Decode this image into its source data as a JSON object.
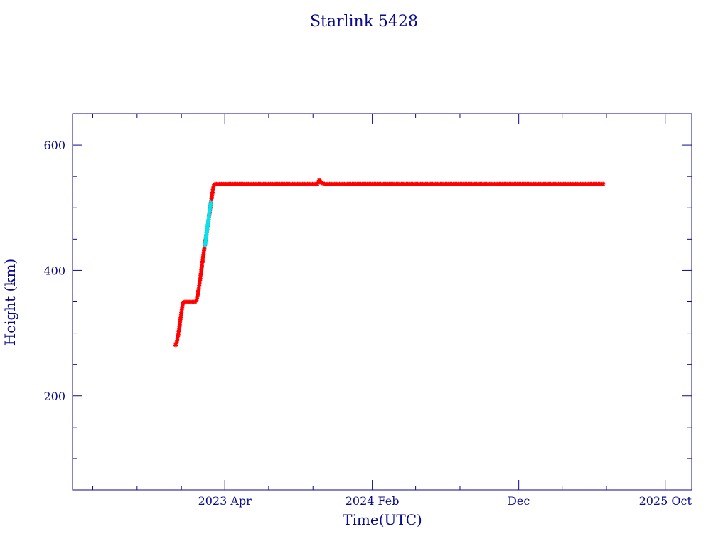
{
  "chart_data": {
    "type": "scatter",
    "title": "Starlink 5428",
    "xlabel": "Time(UTC)",
    "ylabel": "Height (km)",
    "xlim": [
      "2022-05-20",
      "2025-11-25"
    ],
    "ylim": [
      50,
      650
    ],
    "x_ticks": [
      {
        "date": "2023-04-01",
        "label": "2023 Apr"
      },
      {
        "date": "2024-02-01",
        "label": "2024 Feb"
      },
      {
        "date": "2024-12-01",
        "label": "Dec"
      },
      {
        "date": "2025-10-01",
        "label": "2025 Oct"
      }
    ],
    "x_minor_ticks": [
      "2022-07-01",
      "2022-10-01",
      "2023-01-01",
      "2023-07-01",
      "2023-10-01",
      "2024-05-01",
      "2024-08-01",
      "2025-03-01",
      "2025-06-01"
    ],
    "y_ticks": [
      {
        "value": 200,
        "label": "200"
      },
      {
        "value": 400,
        "label": "400"
      },
      {
        "value": 600,
        "label": "600"
      }
    ],
    "y_minor_ticks": [
      100,
      150,
      250,
      300,
      350,
      450,
      500,
      550
    ],
    "colors": {
      "axes": "#0a0a8c",
      "main": "#ff0000",
      "alt": "#00e5ee",
      "line": "#000000"
    },
    "series": [
      {
        "color": "#ff0000",
        "marker": "star",
        "points": [
          [
            "2022-12-20",
            281
          ],
          [
            "2022-12-22",
            285
          ],
          [
            "2022-12-24",
            292
          ],
          [
            "2022-12-26",
            300
          ],
          [
            "2022-12-28",
            310
          ],
          [
            "2022-12-30",
            322
          ],
          [
            "2023-01-01",
            333
          ],
          [
            "2023-01-03",
            343
          ],
          [
            "2023-01-05",
            349
          ],
          [
            "2023-01-08",
            350
          ],
          [
            "2023-01-11",
            350
          ],
          [
            "2023-01-14",
            350
          ],
          [
            "2023-01-17",
            350
          ],
          [
            "2023-01-20",
            350
          ],
          [
            "2023-01-23",
            350
          ],
          [
            "2023-01-26",
            350
          ],
          [
            "2023-01-29",
            350
          ],
          [
            "2023-02-01",
            352
          ],
          [
            "2023-02-03",
            358
          ],
          [
            "2023-02-05",
            366
          ],
          [
            "2023-02-07",
            376
          ],
          [
            "2023-02-09",
            387
          ],
          [
            "2023-02-11",
            398
          ],
          [
            "2023-02-13",
            410
          ],
          [
            "2023-02-15",
            420
          ],
          [
            "2023-02-17",
            432
          ],
          [
            "2023-02-24",
            468
          ],
          [
            "2023-02-26",
            478
          ],
          [
            "2023-02-28",
            490
          ],
          [
            "2023-03-04",
            512
          ],
          [
            "2023-03-06",
            522
          ],
          [
            "2023-03-08",
            532
          ],
          [
            "2023-03-10",
            537
          ],
          [
            "2023-03-14",
            538
          ],
          [
            "2023-03-25",
            538
          ],
          [
            "2023-04-10",
            538
          ],
          [
            "2023-05-01",
            538
          ],
          [
            "2023-05-20",
            538
          ],
          [
            "2023-06-10",
            538
          ],
          [
            "2023-07-01",
            538
          ],
          [
            "2023-07-20",
            538
          ],
          [
            "2023-08-10",
            538
          ],
          [
            "2023-08-30",
            538
          ],
          [
            "2023-09-20",
            538
          ],
          [
            "2023-10-10",
            538
          ],
          [
            "2023-10-14",
            544
          ],
          [
            "2023-10-18",
            540
          ],
          [
            "2023-10-25",
            538
          ],
          [
            "2023-11-15",
            538
          ],
          [
            "2023-12-05",
            538
          ],
          [
            "2023-12-25",
            538
          ],
          [
            "2024-01-15",
            538
          ],
          [
            "2024-02-05",
            538
          ],
          [
            "2024-02-25",
            538
          ],
          [
            "2024-03-15",
            538
          ],
          [
            "2024-04-05",
            538
          ],
          [
            "2024-04-25",
            538
          ],
          [
            "2024-05-15",
            538
          ],
          [
            "2024-06-05",
            538
          ],
          [
            "2024-06-25",
            538
          ],
          [
            "2024-07-15",
            538
          ],
          [
            "2024-08-05",
            538
          ],
          [
            "2024-08-25",
            538
          ],
          [
            "2024-09-15",
            538
          ],
          [
            "2024-10-05",
            538
          ],
          [
            "2024-10-25",
            538
          ],
          [
            "2024-11-15",
            538
          ],
          [
            "2024-12-05",
            538
          ],
          [
            "2024-12-25",
            538
          ],
          [
            "2025-01-15",
            538
          ],
          [
            "2025-02-05",
            538
          ],
          [
            "2025-02-25",
            538
          ],
          [
            "2025-03-15",
            538
          ],
          [
            "2025-04-05",
            538
          ],
          [
            "2025-04-25",
            538
          ],
          [
            "2025-05-15",
            538
          ],
          [
            "2025-05-25",
            538
          ]
        ]
      },
      {
        "color": "#00e5ee",
        "marker": "star",
        "points": [
          [
            "2023-02-19",
            440
          ],
          [
            "2023-02-20",
            446
          ],
          [
            "2023-02-21",
            452
          ],
          [
            "2023-02-22",
            458
          ],
          [
            "2023-03-02",
            502
          ],
          [
            "2023-03-03",
            508
          ]
        ]
      }
    ]
  }
}
